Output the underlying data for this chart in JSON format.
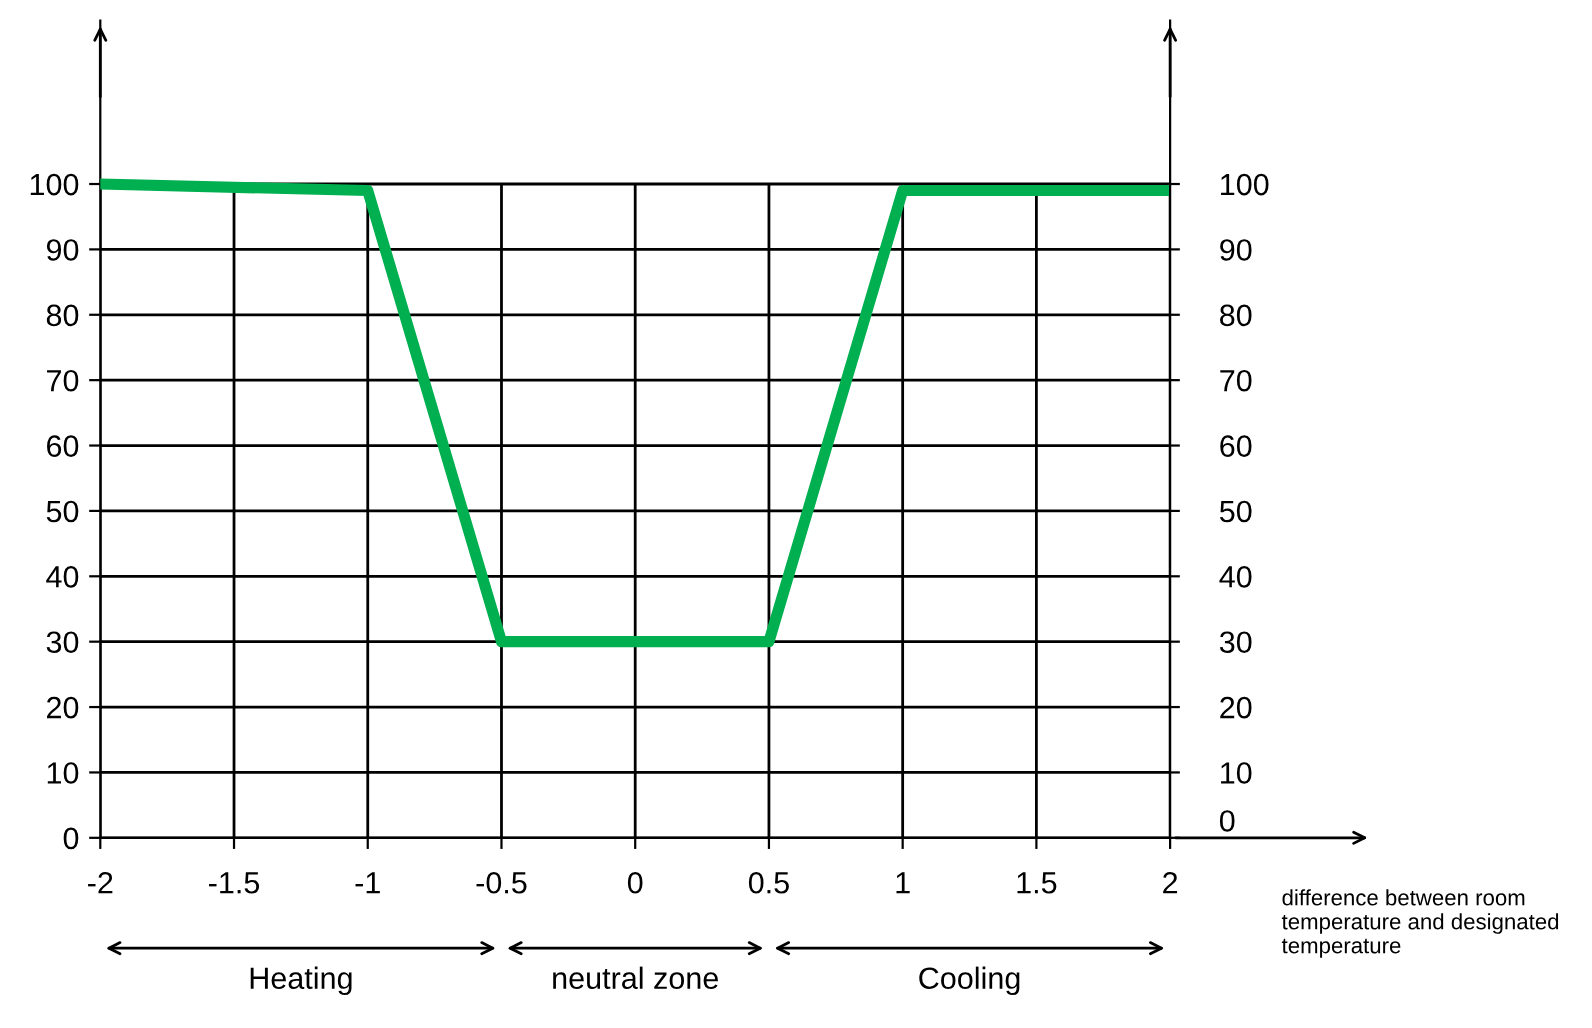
{
  "chart_data": {
    "type": "line",
    "xlabel": "difference between room temperature and designated temperature",
    "x": [
      -2,
      -1,
      -0.5,
      0.5,
      1,
      2
    ],
    "series": [
      {
        "color": "#00b050",
        "values": [
          100,
          99,
          30,
          30,
          99,
          99
        ]
      }
    ],
    "xlim": [
      -2,
      2
    ],
    "xticks": [
      -2,
      -1.5,
      -1,
      -0.5,
      0,
      0.5,
      1,
      1.5,
      2
    ],
    "ylim": [
      0,
      125
    ],
    "yticks": [
      0,
      10,
      20,
      30,
      40,
      50,
      60,
      70,
      80,
      90,
      100
    ],
    "y2lim": [
      0,
      125
    ],
    "y2ticks": [
      0,
      10,
      20,
      30,
      40,
      50,
      60,
      70,
      80,
      90,
      100
    ],
    "grid": true,
    "legend": false,
    "marker": "none",
    "line_style": "solid",
    "annotations": [
      "Heating",
      "neutral zone",
      "Cooling"
    ]
  }
}
